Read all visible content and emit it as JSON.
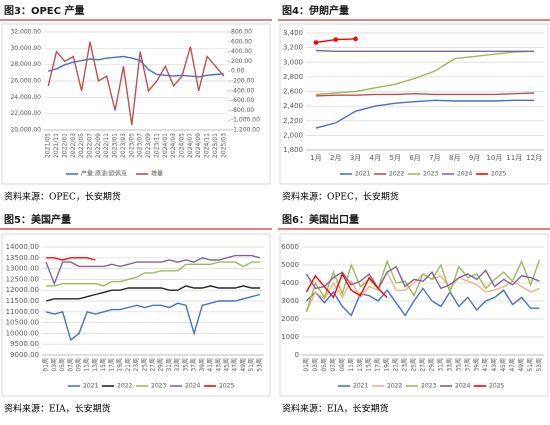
{
  "chart_data": [
    {
      "type": "line",
      "title": "图3：OPEC 产量",
      "source": "资料来源：OPEC，长安期货",
      "grid": true,
      "categories": [
        "2021/05",
        "2021/11",
        "2022/01",
        "2022/03",
        "2022/05",
        "2022/07",
        "2022/09",
        "2022/11",
        "2023/01",
        "2023/03",
        "2023/05",
        "2023/07",
        "2023/09",
        "2023/11",
        "2024/01",
        "2024/03",
        "2024/05",
        "2024/07",
        "2024/09",
        "2024/11",
        "2025/01",
        "2025/03"
      ],
      "ylim": [
        20000,
        32000
      ],
      "yticks": [
        {
          "value": 20000,
          "label": "20,000.00"
        },
        {
          "value": 22000,
          "label": "22,000.00"
        },
        {
          "value": 24000,
          "label": "24,000.00"
        },
        {
          "value": 26000,
          "label": "26,000.00"
        },
        {
          "value": 28000,
          "label": "28,000.00"
        },
        {
          "value": 30000,
          "label": "30,000.00"
        },
        {
          "value": 32000,
          "label": "32,000.00"
        }
      ],
      "y2lim": [
        -1200,
        800
      ],
      "y2ticks": [
        {
          "value": -1200,
          "label": "-1,200.00"
        },
        {
          "value": -1000,
          "label": "-1,000.00"
        },
        {
          "value": -800,
          "label": "-800.00"
        },
        {
          "value": -600,
          "label": "-600.00"
        },
        {
          "value": -400,
          "label": "-400.00"
        },
        {
          "value": -200,
          "label": "-200.00"
        },
        {
          "value": 0,
          "label": "0.00"
        },
        {
          "value": 200,
          "label": "200.00"
        },
        {
          "value": 400,
          "label": "400.00"
        },
        {
          "value": 600,
          "label": "600.00"
        },
        {
          "value": 800,
          "label": "800.00"
        }
      ],
      "series": [
        {
          "name": "产量:原油:欧佩克",
          "color": "#4472c4",
          "values": [
            27200,
            27500,
            28000,
            28300,
            28500,
            28700,
            28600,
            28800,
            28900,
            29000,
            28800,
            28500,
            27400,
            26800,
            26700,
            26600,
            26700,
            26600,
            26500,
            26700,
            26800,
            26900
          ]
        },
        {
          "name": "增量",
          "color": "#c0504d",
          "axis": "y2",
          "values": [
            -300,
            400,
            200,
            300,
            -400,
            600,
            -200,
            -100,
            -800,
            100,
            -1100,
            400,
            -400,
            -200,
            100,
            -300,
            -100,
            500,
            -400,
            300,
            100,
            -100
          ]
        }
      ]
    },
    {
      "type": "line",
      "title": "图4：伊朗产量",
      "source": "资料来源：OPEC，长安期货",
      "grid": true,
      "categories": [
        "1月",
        "2月",
        "3月",
        "4月",
        "5月",
        "6月",
        "7月",
        "8月",
        "9月",
        "10月",
        "11月",
        "12月"
      ],
      "ylim": [
        1800,
        3400
      ],
      "yticks": [
        {
          "value": 1800,
          "label": "1,800"
        },
        {
          "value": 2000,
          "label": "2,000"
        },
        {
          "value": 2200,
          "label": "2,200"
        },
        {
          "value": 2400,
          "label": "2,400"
        },
        {
          "value": 2600,
          "label": "2,600"
        },
        {
          "value": 2800,
          "label": "2,800"
        },
        {
          "value": 3000,
          "label": "3,000"
        },
        {
          "value": 3200,
          "label": "3,200"
        },
        {
          "value": 3400,
          "label": "3,400"
        }
      ],
      "series": [
        {
          "name": "2021",
          "color": "#4472c4",
          "values": [
            2100,
            2170,
            2330,
            2400,
            2440,
            2460,
            2480,
            2470,
            2470,
            2470,
            2480,
            2480
          ]
        },
        {
          "name": "2022",
          "color": "#c0504d",
          "values": [
            2540,
            2550,
            2550,
            2560,
            2560,
            2570,
            2560,
            2560,
            2560,
            2560,
            2570,
            2580
          ]
        },
        {
          "name": "2023",
          "color": "#9bbb59",
          "values": [
            2560,
            2580,
            2600,
            2650,
            2700,
            2780,
            2880,
            3050,
            3080,
            3110,
            3140,
            3150
          ]
        },
        {
          "name": "2024",
          "color": "#8064a2",
          "values": [
            3160,
            3150,
            3150,
            3150,
            3150,
            3150,
            3150,
            3150,
            3150,
            3150,
            3150,
            3150
          ]
        },
        {
          "name": "2025",
          "color": "#ff0000",
          "marker": true,
          "values": [
            3270,
            3310,
            3320,
            null,
            null,
            null,
            null,
            null,
            null,
            null,
            null,
            null
          ]
        }
      ]
    },
    {
      "type": "line",
      "title": "图5：美国产量",
      "source": "资料来源：EIA，长安期货",
      "grid": true,
      "categories": [
        "01周",
        "03周",
        "05周",
        "07周",
        "09周",
        "11周",
        "13周",
        "15周",
        "17周",
        "19周",
        "21周",
        "23周",
        "25周",
        "27周",
        "29周",
        "31周",
        "33周",
        "35周",
        "37周",
        "39周",
        "41周",
        "43周",
        "45周",
        "47周",
        "49周",
        "51周",
        "53周"
      ],
      "ylim": [
        9000,
        14000
      ],
      "yticks": [
        {
          "value": 9000,
          "label": "9000.00"
        },
        {
          "value": 9500,
          "label": "9500.00"
        },
        {
          "value": 10000,
          "label": "10000.00"
        },
        {
          "value": 10500,
          "label": "10500.00"
        },
        {
          "value": 11000,
          "label": "11000.00"
        },
        {
          "value": 11500,
          "label": "11500.00"
        },
        {
          "value": 12000,
          "label": "12000.00"
        },
        {
          "value": 12500,
          "label": "12500.00"
        },
        {
          "value": 13000,
          "label": "13000.00"
        },
        {
          "value": 13500,
          "label": "13500.00"
        },
        {
          "value": 14000,
          "label": "14000.00"
        }
      ],
      "series": [
        {
          "name": "2021",
          "color": "#4472c4",
          "values": [
            11000,
            10900,
            11000,
            9700,
            10000,
            11000,
            10900,
            11000,
            11100,
            11100,
            11200,
            11300,
            11200,
            11300,
            11300,
            11200,
            11400,
            11300,
            10000,
            11300,
            11400,
            11500,
            11500,
            11500,
            11600,
            11700,
            11800
          ]
        },
        {
          "name": "2022",
          "color": "#262626",
          "values": [
            11500,
            11600,
            11600,
            11600,
            11600,
            11700,
            11800,
            11900,
            12000,
            12000,
            12100,
            12100,
            12100,
            12100,
            12100,
            12000,
            12000,
            12200,
            12100,
            12100,
            12200,
            12100,
            12100,
            12100,
            12200,
            12100,
            12100
          ]
        },
        {
          "name": "2023",
          "color": "#9bbb59",
          "values": [
            12200,
            12200,
            12300,
            12300,
            12300,
            12300,
            12300,
            12200,
            12400,
            12400,
            12500,
            12600,
            12800,
            12800,
            12900,
            12900,
            12900,
            13200,
            13200,
            13200,
            13200,
            13300,
            13300,
            13300,
            13100,
            13300,
            13300
          ]
        },
        {
          "name": "2024",
          "color": "#8064a2",
          "values": [
            13300,
            12300,
            13300,
            13300,
            13100,
            13100,
            13100,
            13100,
            13200,
            13100,
            13200,
            13300,
            13300,
            13300,
            13300,
            13400,
            13300,
            13400,
            13300,
            13500,
            13400,
            13400,
            13500,
            13600,
            13600,
            13600,
            13500
          ]
        },
        {
          "name": "2025",
          "color": "#ff0000",
          "values": [
            13500,
            13500,
            13400,
            13500,
            13500,
            13500,
            13400,
            null,
            null,
            null,
            null,
            null,
            null,
            null,
            null,
            null,
            null,
            null,
            null,
            null,
            null,
            null,
            null,
            null,
            null,
            null,
            null
          ]
        }
      ]
    },
    {
      "type": "line",
      "title": "图6：美国出口量",
      "source": "资料来源：EIA，长安期货",
      "grid": true,
      "categories": [
        "01周",
        "03周",
        "05周",
        "07周",
        "09周",
        "11周",
        "13周",
        "15周",
        "17周",
        "19周",
        "21周",
        "23周",
        "25周",
        "27周",
        "29周",
        "31周",
        "33周",
        "35周",
        "37周",
        "39周",
        "41周",
        "43周",
        "45周",
        "47周",
        "49周",
        "51周",
        "53周"
      ],
      "ylim": [
        0,
        6000
      ],
      "yticks": [
        0,
        1000,
        2000,
        3000,
        4000,
        5000,
        6000
      ],
      "series": [
        {
          "name": "2021",
          "color": "#4472c4",
          "values": [
            3000,
            3500,
            2900,
            3500,
            2700,
            2200,
            3400,
            3300,
            3000,
            3600,
            2900,
            2200,
            3000,
            3700,
            3000,
            2700,
            3500,
            2700,
            3200,
            2500,
            3000,
            3200,
            3600,
            2800,
            3200,
            2600,
            2600
          ]
        },
        {
          "name": "2022",
          "color": "#f4b183",
          "values": [
            2400,
            3500,
            3100,
            4000,
            3200,
            4100,
            3200,
            3800,
            3600,
            4600,
            3600,
            3600,
            4000,
            4500,
            4200,
            4400,
            3700,
            4300,
            4100,
            3900,
            3500,
            3600,
            3800,
            4100,
            3800,
            3500,
            3700
          ]
        },
        {
          "name": "2023",
          "color": "#9bbb59",
          "values": [
            2400,
            4000,
            3200,
            4600,
            3400,
            5000,
            3800,
            4200,
            3700,
            5200,
            4000,
            4100,
            3300,
            4500,
            4200,
            5000,
            3500,
            4900,
            4300,
            4500,
            3700,
            4200,
            4600,
            4100,
            5200,
            3900,
            5300
          ]
        },
        {
          "name": "2024",
          "color": "#8064a2",
          "values": [
            4500,
            3700,
            3800,
            4300,
            4600,
            3900,
            4100,
            4500,
            3700,
            4600,
            4900,
            3800,
            4200,
            4100,
            4600,
            3700,
            3900,
            4300,
            4500,
            4200,
            4700,
            3800,
            4200,
            3900,
            4400,
            4300,
            4100
          ]
        },
        {
          "name": "2025",
          "color": "#ff0000",
          "values": [
            3500,
            4400,
            3800,
            3200,
            4500,
            3600,
            3300,
            4300,
            3700,
            3200,
            null,
            null,
            null,
            null,
            null,
            null,
            null,
            null,
            null,
            null,
            null,
            null,
            null,
            null,
            null,
            null,
            null
          ]
        }
      ]
    }
  ]
}
